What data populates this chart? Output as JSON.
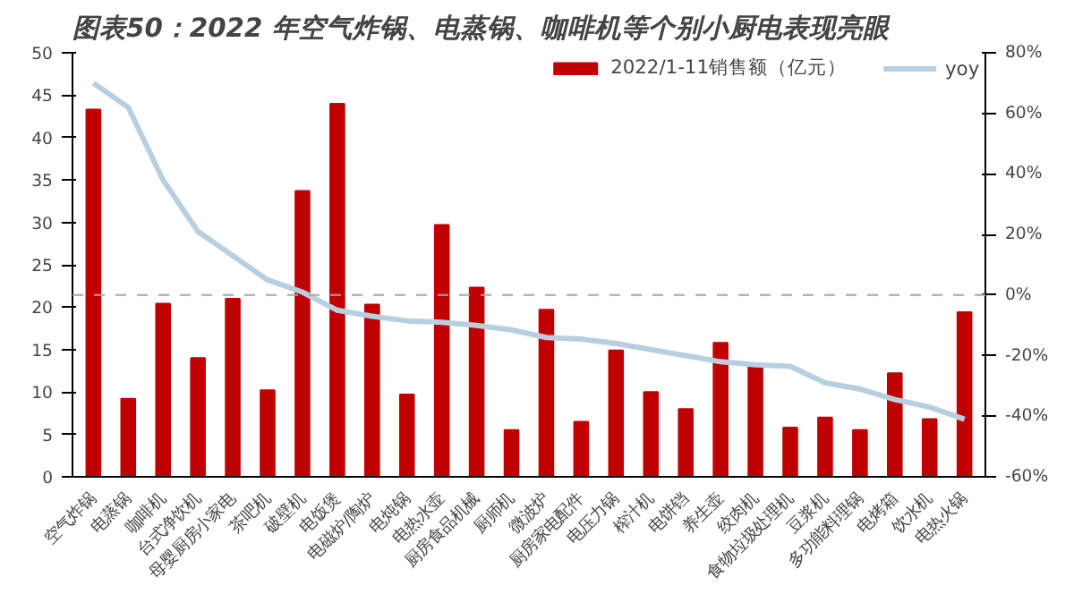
{
  "chart_data": {
    "type": "bar",
    "title": "图表50：2022 年空气炸锅、电蒸锅、咖啡机等个别小厨电表现亮眼",
    "categories": [
      "空气炸锅",
      "电蒸锅",
      "咖啡机",
      "台式净饮机",
      "母婴厨房小家电",
      "茶吧机",
      "破壁机",
      "电饭煲",
      "电磁炉/陶炉",
      "电炖锅",
      "电热水壶",
      "厨房食品机械",
      "厨师机",
      "微波炉",
      "厨房家电配件",
      "电压力锅",
      "榨汁机",
      "电饼铛",
      "养生壶",
      "绞肉机",
      "食物垃圾处理机",
      "豆浆机",
      "多功能料理锅",
      "电烤箱",
      "饮水机",
      "电热火锅"
    ],
    "series": [
      {
        "name": "2022/1-11销售额（亿元）",
        "color": "#c00000",
        "values": [
          43.3,
          9.2,
          20.4,
          14,
          21,
          10.2,
          33.7,
          44,
          20.3,
          9.7,
          29.7,
          22.3,
          5.5,
          19.7,
          6.5,
          14.9,
          10,
          8,
          15.8,
          13,
          5.8,
          7,
          5.5,
          12.2,
          6.8,
          19.4
        ]
      },
      {
        "name": "yoy",
        "type": "line",
        "axis": "y2",
        "color": "#b8cfe0",
        "values": [
          70,
          62,
          38,
          21,
          13,
          5,
          1,
          -5,
          -7,
          -8.5,
          -9,
          -10,
          -11.5,
          -14,
          -14.5,
          -16,
          -18,
          -20,
          -22,
          -23,
          -23.5,
          -29,
          -31,
          -34.5,
          -37,
          -41
        ]
      }
    ],
    "ylim": [
      0,
      50
    ],
    "yticks": [
      0,
      5,
      10,
      15,
      20,
      25,
      30,
      35,
      40,
      45,
      50
    ],
    "y2lim": [
      -60,
      80
    ],
    "y2ticks": [
      {
        "value": -60,
        "label": "-60%"
      },
      {
        "value": -40,
        "label": "-40%"
      },
      {
        "value": -20,
        "label": "-20%"
      },
      {
        "value": 0,
        "label": "0%"
      },
      {
        "value": 20,
        "label": "20%"
      },
      {
        "value": 40,
        "label": "40%"
      },
      {
        "value": 60,
        "label": "60%"
      },
      {
        "value": 80,
        "label": "80%"
      }
    ],
    "ref_lines": [
      {
        "axis": "y2",
        "value": 0,
        "color": "#a6a6a6",
        "line_style": "dashed"
      }
    ],
    "legend": "top",
    "grid": false
  }
}
